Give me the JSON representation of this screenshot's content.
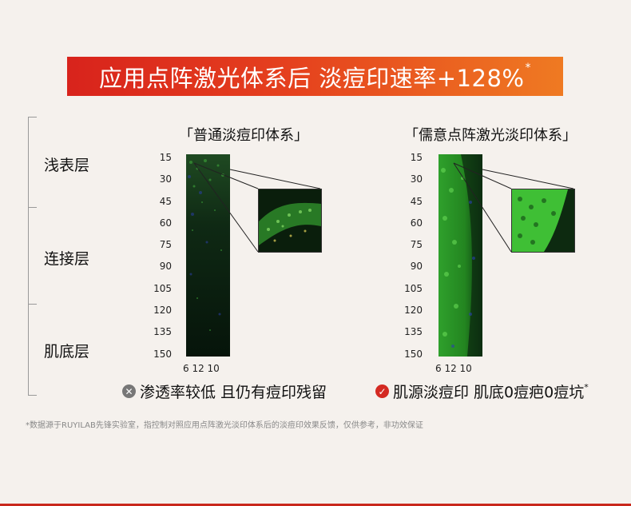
{
  "banner": {
    "title": "应用点阵激光体系后 淡痘印速率+128%",
    "mark": "*"
  },
  "layers": [
    "浅表层",
    "连接层",
    "肌底层"
  ],
  "panels": [
    {
      "title": "「普通淡痘印体系」",
      "result": "渗透率较低 且仍有痘印残留",
      "result_status": "negative"
    },
    {
      "title": "「儒意点阵激光淡印体系」",
      "result": "肌源淡痘印 肌底0痘疤0痘坑",
      "result_mark": "*",
      "result_status": "positive"
    }
  ],
  "depth_ticks": [
    "15",
    "30",
    "45",
    "60",
    "75",
    "90",
    "105",
    "120",
    "135",
    "150"
  ],
  "width_ticks": "6 12 10",
  "footnote": "*数据源于RUYILAB先锋实验室，指控制对照应用点阵激光淡印体系后的淡痘印效果反馈，仅供参考，非功效保证",
  "colors": {
    "banner_start": "#d8231c",
    "banner_end": "#ef7a22",
    "negative": "#777777",
    "positive": "#d42a22"
  }
}
